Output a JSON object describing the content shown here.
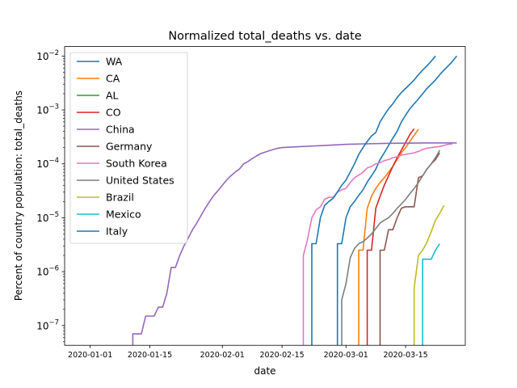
{
  "chart_data": {
    "type": "line",
    "title": "Normalized total_deaths vs. date",
    "xlabel": "date",
    "ylabel": "Percent of country population: total_deaths",
    "yscale": "log",
    "xlim": [
      "2019-12-26",
      "2020-03-29"
    ],
    "ylim": [
      4.3e-08,
      0.015
    ],
    "x_ticks": [
      "2020-01-01",
      "2020-01-15",
      "2020-02-01",
      "2020-02-15",
      "2020-03-01",
      "2020-03-15"
    ],
    "y_ticks": [
      {
        "value": 1e-07,
        "base": "10",
        "exp": "−7"
      },
      {
        "value": 1e-06,
        "base": "10",
        "exp": "−6"
      },
      {
        "value": 1e-05,
        "base": "10",
        "exp": "−5"
      },
      {
        "value": 0.0001,
        "base": "10",
        "exp": "−4"
      },
      {
        "value": 0.001,
        "base": "10",
        "exp": "−3"
      },
      {
        "value": 0.01,
        "base": "10",
        "exp": "−2"
      }
    ],
    "legend_position": "upper-left",
    "grid": false,
    "series": [
      {
        "name": "WA",
        "color": "#1f77b4",
        "points": [
          [
            "2020-02-28",
            3.3e-06
          ],
          [
            "2020-02-29",
            3.3e-06
          ],
          [
            "2020-03-01",
            1e-05
          ],
          [
            "2020-03-02",
            1.6e-05
          ],
          [
            "2020-03-03",
            2e-05
          ],
          [
            "2020-03-04",
            2.6e-05
          ],
          [
            "2020-03-05",
            3.3e-05
          ],
          [
            "2020-03-06",
            4.6e-05
          ],
          [
            "2020-03-07",
            6e-05
          ],
          [
            "2020-03-08",
            8e-05
          ],
          [
            "2020-03-09",
            0.00012
          ],
          [
            "2020-03-10",
            0.00016
          ],
          [
            "2020-03-11",
            0.00022
          ],
          [
            "2020-03-12",
            0.0003
          ],
          [
            "2020-03-13",
            0.0004
          ],
          [
            "2020-03-14",
            0.0006
          ],
          [
            "2020-03-15",
            0.0008
          ],
          [
            "2020-03-16",
            0.00105
          ],
          [
            "2020-03-17",
            0.0013
          ],
          [
            "2020-03-18",
            0.0016
          ],
          [
            "2020-03-19",
            0.002
          ],
          [
            "2020-03-20",
            0.0025
          ],
          [
            "2020-03-21",
            0.003
          ],
          [
            "2020-03-22",
            0.0036
          ],
          [
            "2020-03-23",
            0.0045
          ],
          [
            "2020-03-24",
            0.0055
          ],
          [
            "2020-03-25",
            0.0066
          ],
          [
            "2020-03-26",
            0.008
          ],
          [
            "2020-03-27",
            0.01
          ]
        ]
      },
      {
        "name": "CA",
        "color": "#ff7f0e",
        "points": [
          [
            "2020-03-04",
            2.5e-06
          ],
          [
            "2020-03-05",
            2.5e-06
          ],
          [
            "2020-03-06",
            1.5e-05
          ],
          [
            "2020-03-07",
            2.5e-05
          ],
          [
            "2020-03-08",
            3.5e-05
          ],
          [
            "2020-03-09",
            4.5e-05
          ],
          [
            "2020-03-10",
            5.5e-05
          ],
          [
            "2020-03-11",
            7e-05
          ],
          [
            "2020-03-12",
            9e-05
          ],
          [
            "2020-03-13",
            0.00012
          ],
          [
            "2020-03-14",
            0.00016
          ],
          [
            "2020-03-15",
            0.0002
          ],
          [
            "2020-03-16",
            0.00026
          ],
          [
            "2020-03-17",
            0.00034
          ],
          [
            "2020-03-18",
            0.00044
          ]
        ]
      },
      {
        "name": "AL",
        "color": "#2ca02c",
        "points": []
      },
      {
        "name": "CO",
        "color": "#d62728",
        "points": [
          [
            "2020-03-06",
            2.5e-06
          ],
          [
            "2020-03-07",
            2.5e-06
          ],
          [
            "2020-03-08",
            1.5e-05
          ],
          [
            "2020-03-09",
            2.5e-05
          ],
          [
            "2020-03-10",
            4e-05
          ],
          [
            "2020-03-11",
            6e-05
          ],
          [
            "2020-03-12",
            9e-05
          ],
          [
            "2020-03-13",
            0.00013
          ],
          [
            "2020-03-14",
            0.00018
          ],
          [
            "2020-03-15",
            0.00025
          ],
          [
            "2020-03-16",
            0.00035
          ],
          [
            "2020-03-17",
            0.00045
          ]
        ]
      },
      {
        "name": "China",
        "color": "#9467bd",
        "points": [
          [
            "2020-01-11",
            7e-08
          ],
          [
            "2020-01-12",
            7e-08
          ],
          [
            "2020-01-13",
            7e-08
          ],
          [
            "2020-01-14",
            1.5e-07
          ],
          [
            "2020-01-15",
            1.5e-07
          ],
          [
            "2020-01-16",
            1.5e-07
          ],
          [
            "2020-01-17",
            2.2e-07
          ],
          [
            "2020-01-18",
            2.2e-07
          ],
          [
            "2020-01-19",
            4e-07
          ],
          [
            "2020-01-20",
            1.2e-06
          ],
          [
            "2020-01-21",
            1.2e-06
          ],
          [
            "2020-01-22",
            2e-06
          ],
          [
            "2020-01-23",
            3e-06
          ],
          [
            "2020-01-24",
            4.2e-06
          ],
          [
            "2020-01-25",
            6e-06
          ],
          [
            "2020-01-26",
            8e-06
          ],
          [
            "2020-01-27",
            1.1e-05
          ],
          [
            "2020-01-28",
            1.5e-05
          ],
          [
            "2020-01-29",
            2e-05
          ],
          [
            "2020-01-30",
            2.6e-05
          ],
          [
            "2020-01-31",
            3.2e-05
          ],
          [
            "2020-02-01",
            4e-05
          ],
          [
            "2020-02-02",
            5e-05
          ],
          [
            "2020-02-03",
            6e-05
          ],
          [
            "2020-02-04",
            7e-05
          ],
          [
            "2020-02-05",
            8e-05
          ],
          [
            "2020-02-06",
            0.0001
          ],
          [
            "2020-02-07",
            0.00011
          ],
          [
            "2020-02-08",
            0.000125
          ],
          [
            "2020-02-09",
            0.00014
          ],
          [
            "2020-02-10",
            0.000155
          ],
          [
            "2020-02-11",
            0.000165
          ],
          [
            "2020-02-12",
            0.000175
          ],
          [
            "2020-02-13",
            0.000185
          ],
          [
            "2020-02-14",
            0.000195
          ],
          [
            "2020-02-15",
            0.0002
          ],
          [
            "2020-02-20",
            0.00021
          ],
          [
            "2020-02-25",
            0.00022
          ],
          [
            "2020-03-01",
            0.00023
          ],
          [
            "2020-03-05",
            0.000235
          ],
          [
            "2020-03-10",
            0.00024
          ],
          [
            "2020-03-15",
            0.000242
          ],
          [
            "2020-03-20",
            0.000245
          ],
          [
            "2020-03-27",
            0.000245
          ]
        ]
      },
      {
        "name": "Germany",
        "color": "#8c564b",
        "points": [
          [
            "2020-03-09",
            2.5e-06
          ],
          [
            "2020-03-10",
            2.5e-06
          ],
          [
            "2020-03-11",
            6e-06
          ],
          [
            "2020-03-12",
            6e-06
          ],
          [
            "2020-03-13",
            1e-05
          ],
          [
            "2020-03-14",
            1.5e-05
          ],
          [
            "2020-03-15",
            1.6e-05
          ],
          [
            "2020-03-16",
            1.6e-05
          ],
          [
            "2020-03-17",
            1.6e-05
          ],
          [
            "2020-03-18",
            5.5e-05
          ],
          [
            "2020-03-19",
            6e-05
          ],
          [
            "2020-03-20",
            8e-05
          ],
          [
            "2020-03-21",
            0.0001
          ],
          [
            "2020-03-22",
            0.00012
          ],
          [
            "2020-03-23",
            0.00016
          ]
        ]
      },
      {
        "name": "South Korea",
        "color": "#e377c2",
        "points": [
          [
            "2020-02-20",
            2e-06
          ],
          [
            "2020-02-21",
            4e-06
          ],
          [
            "2020-02-22",
            1e-05
          ],
          [
            "2020-02-23",
            1.4e-05
          ],
          [
            "2020-02-24",
            1.6e-05
          ],
          [
            "2020-02-25",
            2.2e-05
          ],
          [
            "2020-02-26",
            2.4e-05
          ],
          [
            "2020-02-27",
            2.4e-05
          ],
          [
            "2020-02-28",
            3e-05
          ],
          [
            "2020-02-29",
            3.3e-05
          ],
          [
            "2020-03-01",
            3.5e-05
          ],
          [
            "2020-03-02",
            4.5e-05
          ],
          [
            "2020-03-03",
            5.5e-05
          ],
          [
            "2020-03-04",
            6.2e-05
          ],
          [
            "2020-03-05",
            7e-05
          ],
          [
            "2020-03-06",
            8.4e-05
          ],
          [
            "2020-03-07",
            9e-05
          ],
          [
            "2020-03-08",
            0.0001
          ],
          [
            "2020-03-09",
            0.000105
          ],
          [
            "2020-03-10",
            0.000115
          ],
          [
            "2020-03-11",
            0.00012
          ],
          [
            "2020-03-12",
            0.00013
          ],
          [
            "2020-03-13",
            0.000135
          ],
          [
            "2020-03-14",
            0.000145
          ],
          [
            "2020-03-15",
            0.00015
          ],
          [
            "2020-03-16",
            0.000155
          ],
          [
            "2020-03-17",
            0.00016
          ],
          [
            "2020-03-18",
            0.00017
          ],
          [
            "2020-03-19",
            0.000185
          ],
          [
            "2020-03-20",
            0.000195
          ],
          [
            "2020-03-21",
            0.0002
          ],
          [
            "2020-03-22",
            0.000205
          ],
          [
            "2020-03-23",
            0.00021
          ],
          [
            "2020-03-24",
            0.00022
          ],
          [
            "2020-03-25",
            0.00023
          ],
          [
            "2020-03-26",
            0.000235
          ]
        ]
      },
      {
        "name": "United States",
        "color": "#7f7f7f",
        "points": [
          [
            "2020-02-29",
            3e-07
          ],
          [
            "2020-03-01",
            6e-07
          ],
          [
            "2020-03-02",
            1.8e-06
          ],
          [
            "2020-03-03",
            2.7e-06
          ],
          [
            "2020-03-04",
            3.3e-06
          ],
          [
            "2020-03-05",
            3.6e-06
          ],
          [
            "2020-03-06",
            4.2e-06
          ],
          [
            "2020-03-07",
            5e-06
          ],
          [
            "2020-03-08",
            6.3e-06
          ],
          [
            "2020-03-09",
            8e-06
          ],
          [
            "2020-03-10",
            9e-06
          ],
          [
            "2020-03-11",
            1e-05
          ],
          [
            "2020-03-12",
            1.2e-05
          ],
          [
            "2020-03-13",
            1.5e-05
          ],
          [
            "2020-03-14",
            1.8e-05
          ],
          [
            "2020-03-15",
            2.2e-05
          ],
          [
            "2020-03-16",
            2.8e-05
          ],
          [
            "2020-03-17",
            3.5e-05
          ],
          [
            "2020-03-18",
            4.5e-05
          ],
          [
            "2020-03-19",
            6e-05
          ],
          [
            "2020-03-20",
            8e-05
          ],
          [
            "2020-03-21",
            0.0001
          ],
          [
            "2020-03-22",
            0.00013
          ],
          [
            "2020-03-23",
            0.00018
          ]
        ]
      },
      {
        "name": "Brazil",
        "color": "#bcbd22",
        "points": [
          [
            "2020-03-17",
            5e-07
          ],
          [
            "2020-03-18",
            2e-06
          ],
          [
            "2020-03-19",
            2.5e-06
          ],
          [
            "2020-03-20",
            3.5e-06
          ],
          [
            "2020-03-21",
            5.5e-06
          ],
          [
            "2020-03-22",
            9e-06
          ],
          [
            "2020-03-23",
            1.2e-05
          ],
          [
            "2020-03-24",
            1.7e-05
          ]
        ]
      },
      {
        "name": "Mexico",
        "color": "#17becf",
        "points": [
          [
            "2020-03-19",
            1.7e-06
          ],
          [
            "2020-03-20",
            1.7e-06
          ],
          [
            "2020-03-21",
            1.7e-06
          ],
          [
            "2020-03-22",
            2.5e-06
          ],
          [
            "2020-03-23",
            3.3e-06
          ]
        ]
      },
      {
        "name": "Italy",
        "color": "#1f77b4",
        "points": [
          [
            "2020-02-22",
            3.3e-06
          ],
          [
            "2020-02-23",
            3.3e-06
          ],
          [
            "2020-02-24",
            1e-05
          ],
          [
            "2020-02-25",
            1.7e-05
          ],
          [
            "2020-02-26",
            2e-05
          ],
          [
            "2020-02-27",
            2.3e-05
          ],
          [
            "2020-02-28",
            3e-05
          ],
          [
            "2020-02-29",
            4e-05
          ],
          [
            "2020-03-01",
            5e-05
          ],
          [
            "2020-03-02",
            7e-05
          ],
          [
            "2020-03-03",
            0.0001
          ],
          [
            "2020-03-04",
            0.00015
          ],
          [
            "2020-03-05",
            0.0002
          ],
          [
            "2020-03-06",
            0.00026
          ],
          [
            "2020-03-07",
            0.00033
          ],
          [
            "2020-03-08",
            0.00038
          ],
          [
            "2020-03-09",
            0.0006
          ],
          [
            "2020-03-10",
            0.0008
          ],
          [
            "2020-03-11",
            0.00105
          ],
          [
            "2020-03-12",
            0.0013
          ],
          [
            "2020-03-13",
            0.0017
          ],
          [
            "2020-03-14",
            0.0021
          ],
          [
            "2020-03-15",
            0.0025
          ],
          [
            "2020-03-16",
            0.003
          ],
          [
            "2020-03-17",
            0.0036
          ],
          [
            "2020-03-18",
            0.0045
          ],
          [
            "2020-03-19",
            0.0055
          ],
          [
            "2020-03-20",
            0.0066
          ],
          [
            "2020-03-21",
            0.008
          ],
          [
            "2020-03-22",
            0.01
          ]
        ]
      }
    ]
  }
}
